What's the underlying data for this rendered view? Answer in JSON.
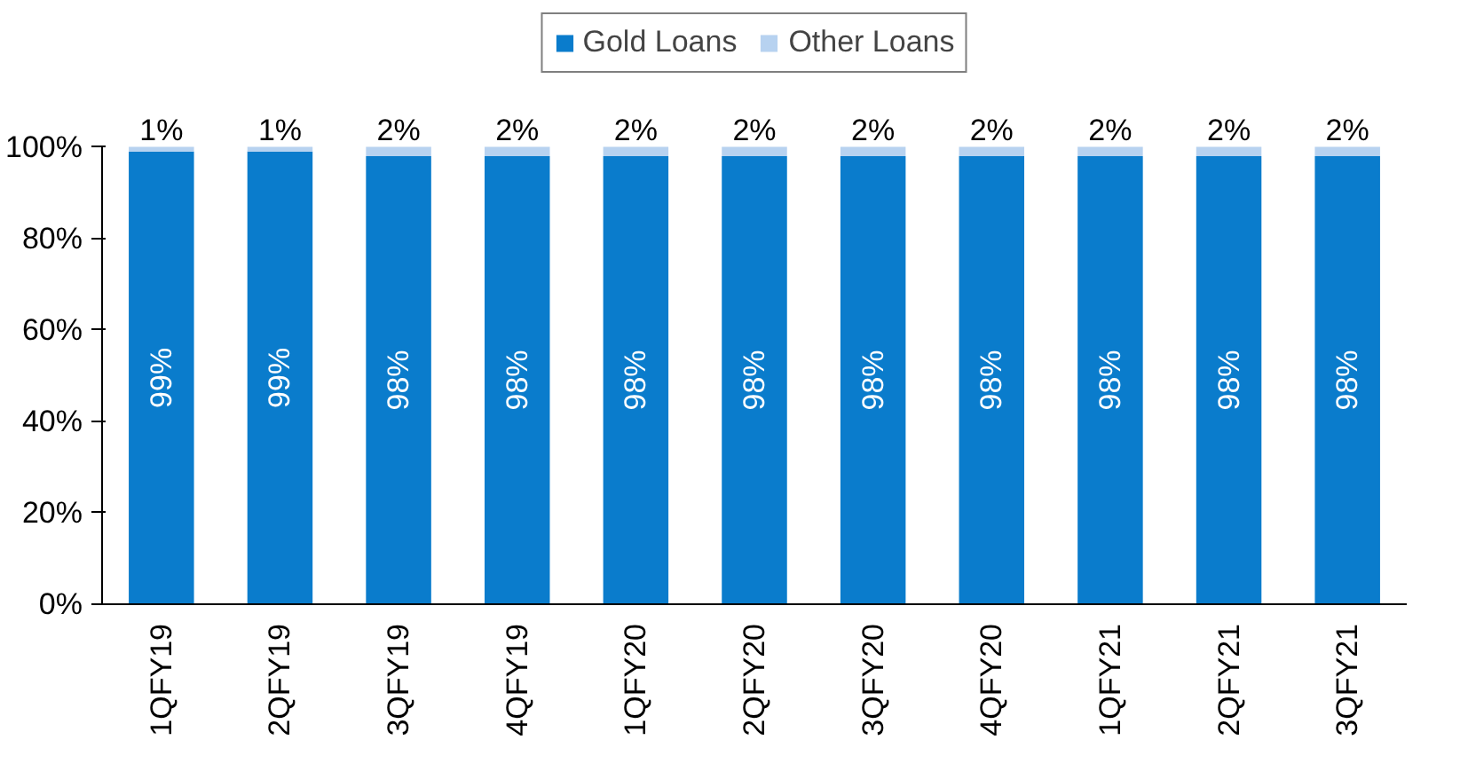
{
  "chart_data": {
    "type": "bar",
    "stacked": true,
    "categories": [
      "1QFY19",
      "2QFY19",
      "3QFY19",
      "4QFY19",
      "1QFY20",
      "2QFY20",
      "3QFY20",
      "4QFY20",
      "1QFY21",
      "2QFY21",
      "3QFY21"
    ],
    "series": [
      {
        "name": "Gold Loans",
        "color": "#0a7ccc",
        "values": [
          99,
          99,
          98,
          98,
          98,
          98,
          98,
          98,
          98,
          98,
          98
        ],
        "value_labels": [
          "99%",
          "99%",
          "98%",
          "98%",
          "98%",
          "98%",
          "98%",
          "98%",
          "98%",
          "98%",
          "98%"
        ]
      },
      {
        "name": "Other Loans",
        "color": "#b7d2f0",
        "values": [
          1,
          1,
          2,
          2,
          2,
          2,
          2,
          2,
          2,
          2,
          2
        ],
        "value_labels": [
          "1%",
          "1%",
          "2%",
          "2%",
          "2%",
          "2%",
          "2%",
          "2%",
          "2%",
          "2%",
          "2%"
        ]
      }
    ],
    "ylim": [
      0,
      100
    ],
    "yticks": [
      {
        "value": 0,
        "label": "0%"
      },
      {
        "value": 20,
        "label": "20%"
      },
      {
        "value": 40,
        "label": "40%"
      },
      {
        "value": 60,
        "label": "60%"
      },
      {
        "value": 80,
        "label": "80%"
      },
      {
        "value": 100,
        "label": "100%"
      }
    ],
    "legend": "top",
    "grid": false
  }
}
